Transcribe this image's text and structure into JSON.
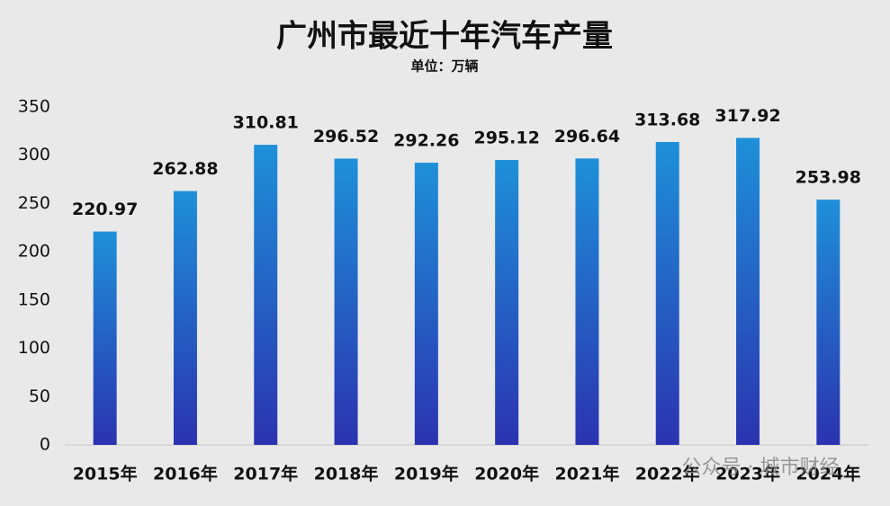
{
  "chart_data": {
    "type": "bar",
    "title": "广州市最近十年汽车产量",
    "subtitle": "单位：万辆",
    "categories": [
      "2015年",
      "2016年",
      "2017年",
      "2018年",
      "2019年",
      "2020年",
      "2021年",
      "2022年",
      "2023年",
      "2024年"
    ],
    "values": [
      220.97,
      262.88,
      310.81,
      296.52,
      292.26,
      295.12,
      296.64,
      313.68,
      317.92,
      253.98
    ],
    "color": [
      "#1e90d8",
      "#2b33b0"
    ],
    "ylim": [
      0,
      350
    ],
    "yticks": [
      0,
      50,
      100,
      150,
      200,
      250,
      300,
      350
    ],
    "grid": false,
    "watermark": "公众号 · 城市财经"
  }
}
